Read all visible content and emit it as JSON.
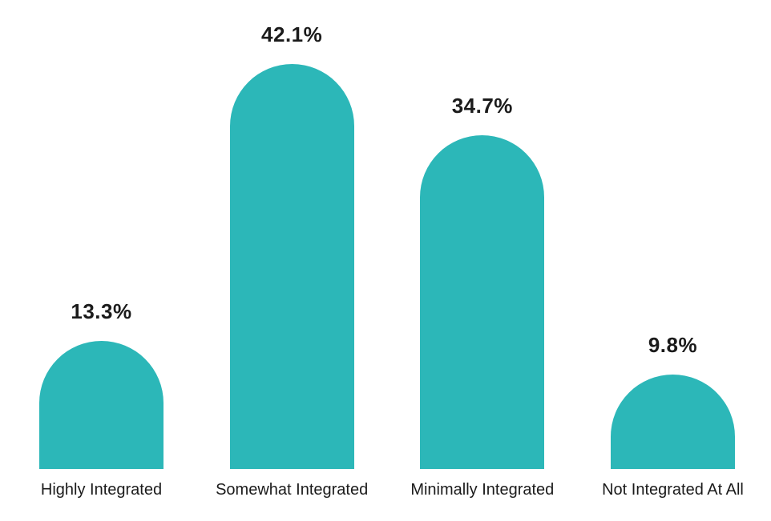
{
  "chart_data": {
    "type": "bar",
    "title": "",
    "xlabel": "",
    "ylabel": "",
    "categories": [
      "Highly Integrated",
      "Somewhat Integrated",
      "Minimally Integrated",
      "Not Integrated At All"
    ],
    "values": [
      13.3,
      42.1,
      34.7,
      9.8
    ],
    "value_labels": [
      "13.3%",
      "42.1%",
      "34.7%",
      "9.8%"
    ],
    "ylim": [
      0,
      48.7
    ],
    "grid": false,
    "legend": false,
    "axes_visible": false,
    "bar_shape": "rounded-dome-top",
    "bar_color": "#2cb7b8",
    "text_color": "#1b1b1b",
    "background_color": "#ffffff"
  }
}
